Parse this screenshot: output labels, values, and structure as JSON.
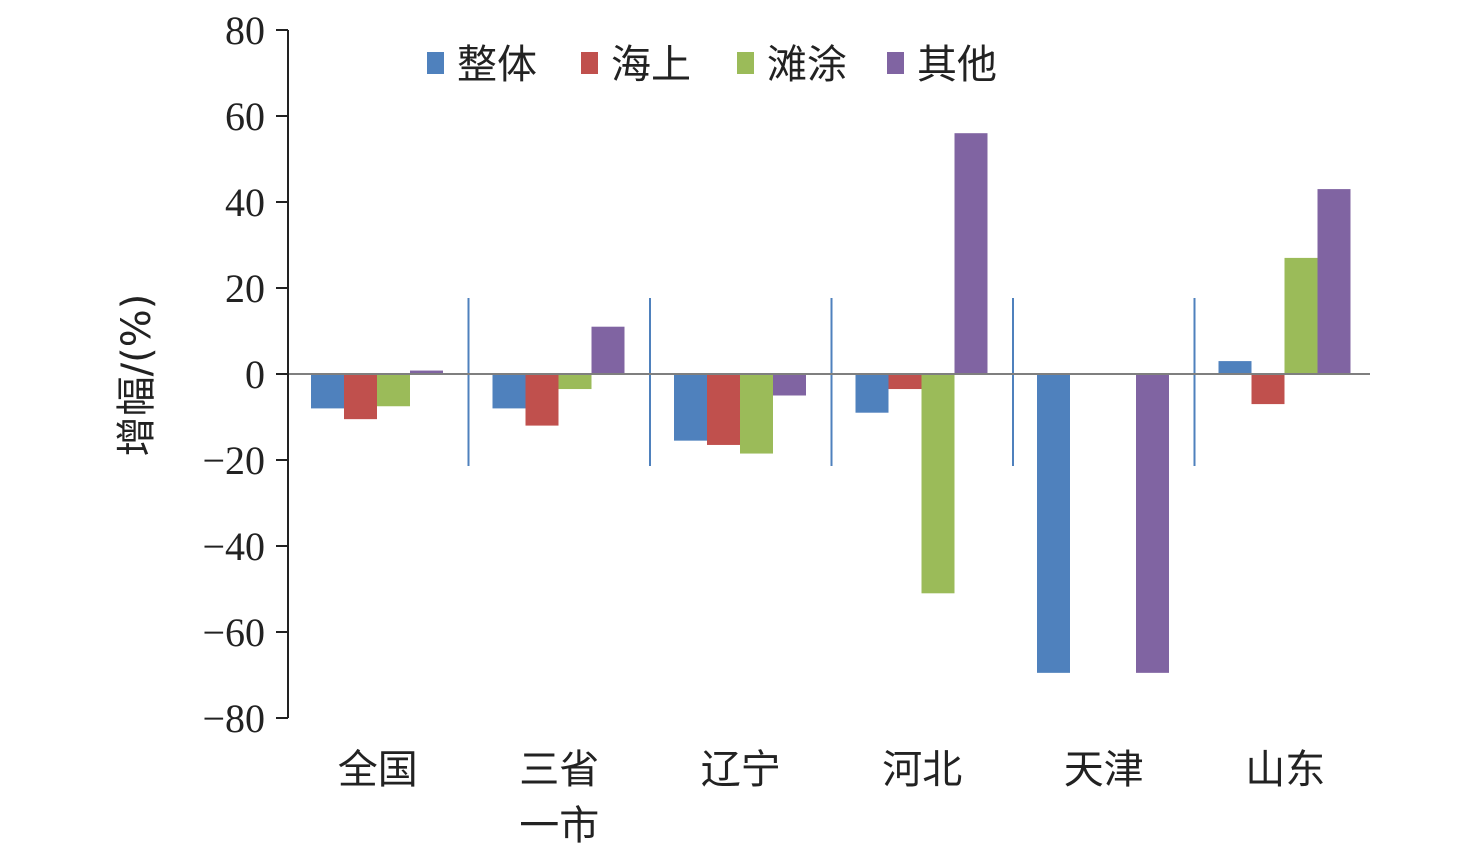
{
  "chart_data": {
    "type": "bar",
    "categories": [
      [
        "全国"
      ],
      [
        "三省",
        "一市"
      ],
      [
        "辽宁"
      ],
      [
        "河北"
      ],
      [
        "天津"
      ],
      [
        "山东"
      ]
    ],
    "series": [
      {
        "name": "整体",
        "color": "#4F81BD",
        "values": [
          -8,
          -8,
          -15.5,
          -9,
          -69.5,
          3
        ]
      },
      {
        "name": "海上",
        "color": "#C0504D",
        "values": [
          -10.5,
          -12,
          -16.5,
          -3.5,
          null,
          -7
        ]
      },
      {
        "name": "滩涂",
        "color": "#9BBB59",
        "values": [
          -7.5,
          -3.5,
          -18.5,
          -51,
          null,
          27
        ]
      },
      {
        "name": "其他",
        "color": "#8064A2",
        "values": [
          0.8,
          11,
          -5,
          56,
          -69.5,
          43
        ]
      }
    ],
    "ylabel": "增幅/(%)",
    "ylim": [
      -80,
      80
    ],
    "yticks": [
      80,
      60,
      40,
      20,
      0,
      -20,
      -40,
      -60,
      -80
    ],
    "ytick_labels": [
      "80",
      "60",
      "40",
      "20",
      "0",
      "−20",
      "−40",
      "−60",
      "−80"
    ],
    "legend_position": "top",
    "grid": false
  }
}
